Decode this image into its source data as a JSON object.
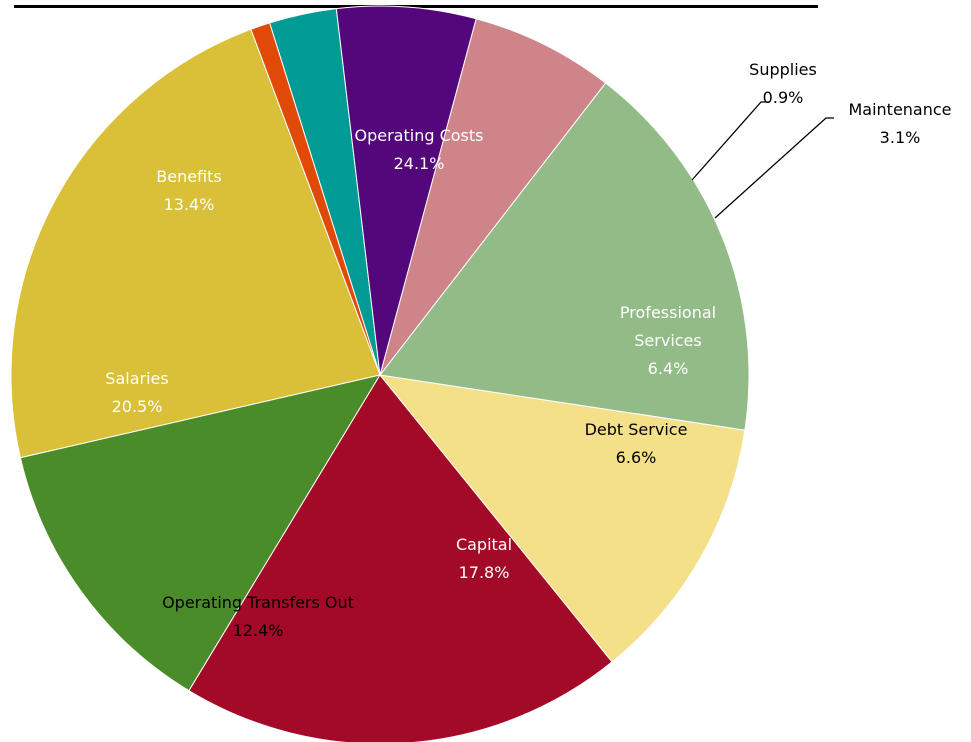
{
  "chart_data": {
    "type": "pie",
    "title": "",
    "start_angle_deg": 96.8,
    "direction": "counterclockwise",
    "slices": [
      {
        "label": "Maintenance",
        "value": 3.1,
        "display": "3.1%",
        "color": "#009B95"
      },
      {
        "label": "Supplies",
        "value": 0.9,
        "display": "0.9%",
        "color": "#E04A06"
      },
      {
        "label": "Operating Costs",
        "value": 24.1,
        "display": "24.1%",
        "color": "#D9C038"
      },
      {
        "label": "Benefits",
        "value": 13.4,
        "display": "13.4%",
        "color": "#4A8C2A"
      },
      {
        "label": "Salaries",
        "value": 20.5,
        "display": "20.5%",
        "color": "#A30A28"
      },
      {
        "label": "Operating Transfers Out",
        "value": 12.4,
        "display": "12.4%",
        "color": "#F5E08A"
      },
      {
        "label": "Capital",
        "value": 17.8,
        "display": "17.8%",
        "color": "#93BB87"
      },
      {
        "label": "Debt Service",
        "value": 6.6,
        "display": "6.6%",
        "color": "#CE8488"
      },
      {
        "label": "Professional Services",
        "value": 6.4,
        "display": "6.4%",
        "color": "#53077A"
      }
    ]
  }
}
